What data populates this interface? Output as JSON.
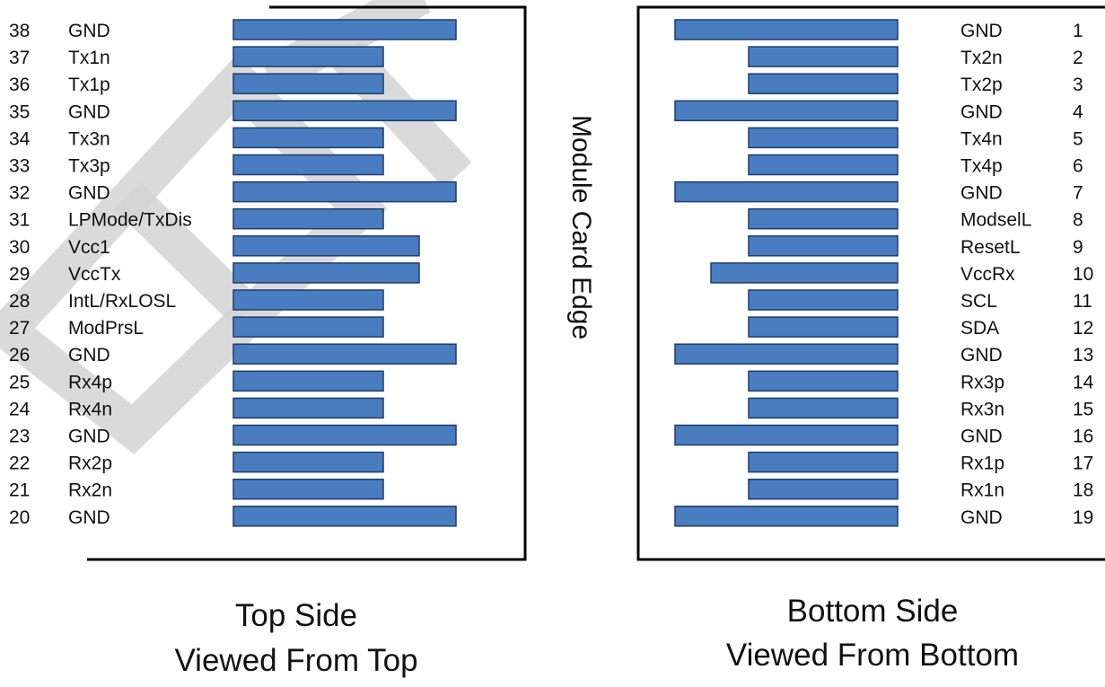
{
  "edge_label": "Module Card Edge",
  "top_side": {
    "caption_line1": "Top Side",
    "caption_line2": "Viewed From Top",
    "pins": [
      {
        "num": "38",
        "name": "GND",
        "pad": "long"
      },
      {
        "num": "37",
        "name": "Tx1n",
        "pad": "short"
      },
      {
        "num": "36",
        "name": "Tx1p",
        "pad": "short"
      },
      {
        "num": "35",
        "name": "GND",
        "pad": "long"
      },
      {
        "num": "34",
        "name": "Tx3n",
        "pad": "short"
      },
      {
        "num": "33",
        "name": "Tx3p",
        "pad": "short"
      },
      {
        "num": "32",
        "name": "GND",
        "pad": "long"
      },
      {
        "num": "31",
        "name": "LPMode/TxDis",
        "pad": "short"
      },
      {
        "num": "30",
        "name": "Vcc1",
        "pad": "medium"
      },
      {
        "num": "29",
        "name": "VccTx",
        "pad": "medium"
      },
      {
        "num": "28",
        "name": "IntL/RxLOSL",
        "pad": "short"
      },
      {
        "num": "27",
        "name": "ModPrsL",
        "pad": "short"
      },
      {
        "num": "26",
        "name": "GND",
        "pad": "long"
      },
      {
        "num": "25",
        "name": "Rx4p",
        "pad": "short"
      },
      {
        "num": "24",
        "name": "Rx4n",
        "pad": "short"
      },
      {
        "num": "23",
        "name": "GND",
        "pad": "long"
      },
      {
        "num": "22",
        "name": "Rx2p",
        "pad": "short"
      },
      {
        "num": "21",
        "name": "Rx2n",
        "pad": "short"
      },
      {
        "num": "20",
        "name": "GND",
        "pad": "long"
      }
    ]
  },
  "bottom_side": {
    "caption_line1": "Bottom Side",
    "caption_line2": "Viewed From Bottom",
    "pins": [
      {
        "num": "1",
        "name": "GND",
        "pad": "long"
      },
      {
        "num": "2",
        "name": "Tx2n",
        "pad": "short"
      },
      {
        "num": "3",
        "name": "Tx2p",
        "pad": "short"
      },
      {
        "num": "4",
        "name": "GND",
        "pad": "long"
      },
      {
        "num": "5",
        "name": "Tx4n",
        "pad": "short"
      },
      {
        "num": "6",
        "name": "Tx4p",
        "pad": "short"
      },
      {
        "num": "7",
        "name": "GND",
        "pad": "long"
      },
      {
        "num": "8",
        "name": "ModselL",
        "pad": "short"
      },
      {
        "num": "9",
        "name": "ResetL",
        "pad": "short"
      },
      {
        "num": "10",
        "name": "VccRx",
        "pad": "medium"
      },
      {
        "num": "11",
        "name": "SCL",
        "pad": "short"
      },
      {
        "num": "12",
        "name": "SDA",
        "pad": "short"
      },
      {
        "num": "13",
        "name": "GND",
        "pad": "long"
      },
      {
        "num": "14",
        "name": "Rx3p",
        "pad": "short"
      },
      {
        "num": "15",
        "name": "Rx3n",
        "pad": "short"
      },
      {
        "num": "16",
        "name": "GND",
        "pad": "long"
      },
      {
        "num": "17",
        "name": "Rx1p",
        "pad": "short"
      },
      {
        "num": "18",
        "name": "Rx1n",
        "pad": "short"
      },
      {
        "num": "19",
        "name": "GND",
        "pad": "long"
      }
    ]
  },
  "colors": {
    "pad_fill": "#4a7cc0",
    "pad_stroke": "#1d3d6e",
    "watermark": "#d3d3d3"
  }
}
